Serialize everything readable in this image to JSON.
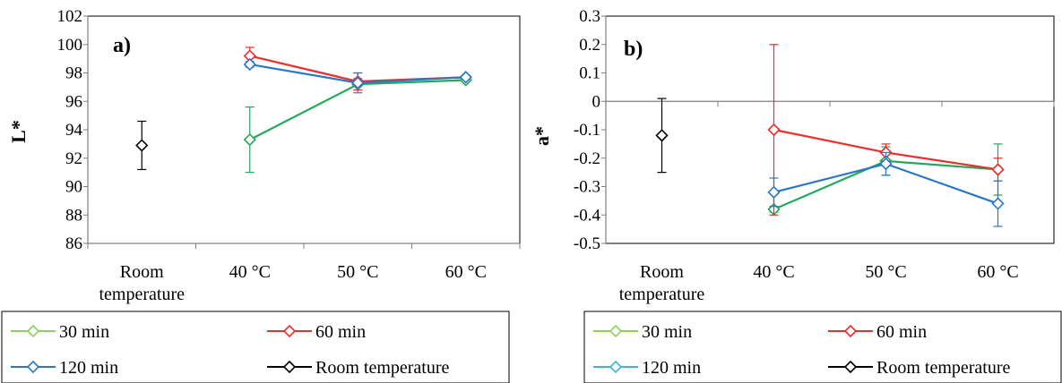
{
  "chart_data": [
    {
      "type": "line",
      "panel_label": "a)",
      "ylabel": "L*",
      "categories": [
        "Room\ntemperature",
        "40 °C",
        "50 °C",
        "60 °C"
      ],
      "ylim": [
        86,
        102
      ],
      "yticks": [
        86,
        88,
        90,
        92,
        94,
        96,
        98,
        100,
        102
      ],
      "series": [
        {
          "name": "30 min",
          "color": "#22a95a",
          "values": [
            null,
            93.3,
            97.2,
            97.5
          ],
          "errors": [
            null,
            2.3,
            0.4,
            0.1
          ]
        },
        {
          "name": "60 min",
          "color": "#ee2d2d",
          "values": [
            null,
            99.2,
            97.4,
            97.7
          ],
          "errors": [
            null,
            0.6,
            0.6,
            0.1
          ]
        },
        {
          "name": "120 min",
          "color": "#2a78c5",
          "values": [
            null,
            98.6,
            97.3,
            97.7
          ],
          "errors": [
            null,
            0.2,
            0.7,
            0.1
          ]
        },
        {
          "name": "Room temperature",
          "color": "#000000",
          "values": [
            92.9,
            null,
            null,
            null
          ],
          "errors": [
            1.7,
            null,
            null,
            null
          ]
        }
      ],
      "legend_entries": [
        {
          "label": "30 min",
          "color": "#8fd15a"
        },
        {
          "label": "60 min",
          "color": "#ee2d2d"
        },
        {
          "label": "120 min",
          "color": "#2a78c5"
        },
        {
          "label": "Room temperature",
          "color": "#000000"
        }
      ],
      "legend_position": "bottom"
    },
    {
      "type": "line",
      "panel_label": "b)",
      "ylabel": "a*",
      "categories": [
        "Room\ntemperature",
        "40 °C",
        "50 °C",
        "60 °C"
      ],
      "ylim": [
        -0.5,
        0.3
      ],
      "yticks": [
        -0.5,
        -0.4,
        -0.3,
        -0.2,
        -0.1,
        0,
        0.1,
        0.2,
        0.3
      ],
      "ytick_labels": [
        "-0.5",
        "-0.4",
        "-0.3",
        "-0.2",
        "-0.1",
        "0",
        "0.1",
        "0.2",
        "0.3"
      ],
      "series": [
        {
          "name": "30 min",
          "color": "#22a95a",
          "values": [
            null,
            -0.38,
            -0.21,
            -0.24
          ],
          "errors": [
            null,
            0.01,
            0.05,
            0.09
          ]
        },
        {
          "name": "60 min",
          "color": "#ee2d2d",
          "values": [
            null,
            -0.1,
            -0.18,
            -0.24
          ],
          "errors": [
            null,
            0.3,
            0.03,
            0.04
          ]
        },
        {
          "name": "120 min",
          "color": "#2a78c5",
          "values": [
            null,
            -0.32,
            -0.22,
            -0.36
          ],
          "errors": [
            null,
            0.05,
            0.04,
            0.08
          ]
        },
        {
          "name": "Room temperature",
          "color": "#000000",
          "values": [
            -0.12,
            null,
            null,
            null
          ],
          "errors": [
            0.13,
            null,
            null,
            null
          ]
        }
      ],
      "legend_entries": [
        {
          "label": "30 min",
          "color": "#8fd15a"
        },
        {
          "label": "60 min",
          "color": "#ee2d2d"
        },
        {
          "label": "120 min",
          "color": "#33b9e9"
        },
        {
          "label": "Room temperature",
          "color": "#000000"
        }
      ],
      "legend_position": "bottom"
    }
  ]
}
